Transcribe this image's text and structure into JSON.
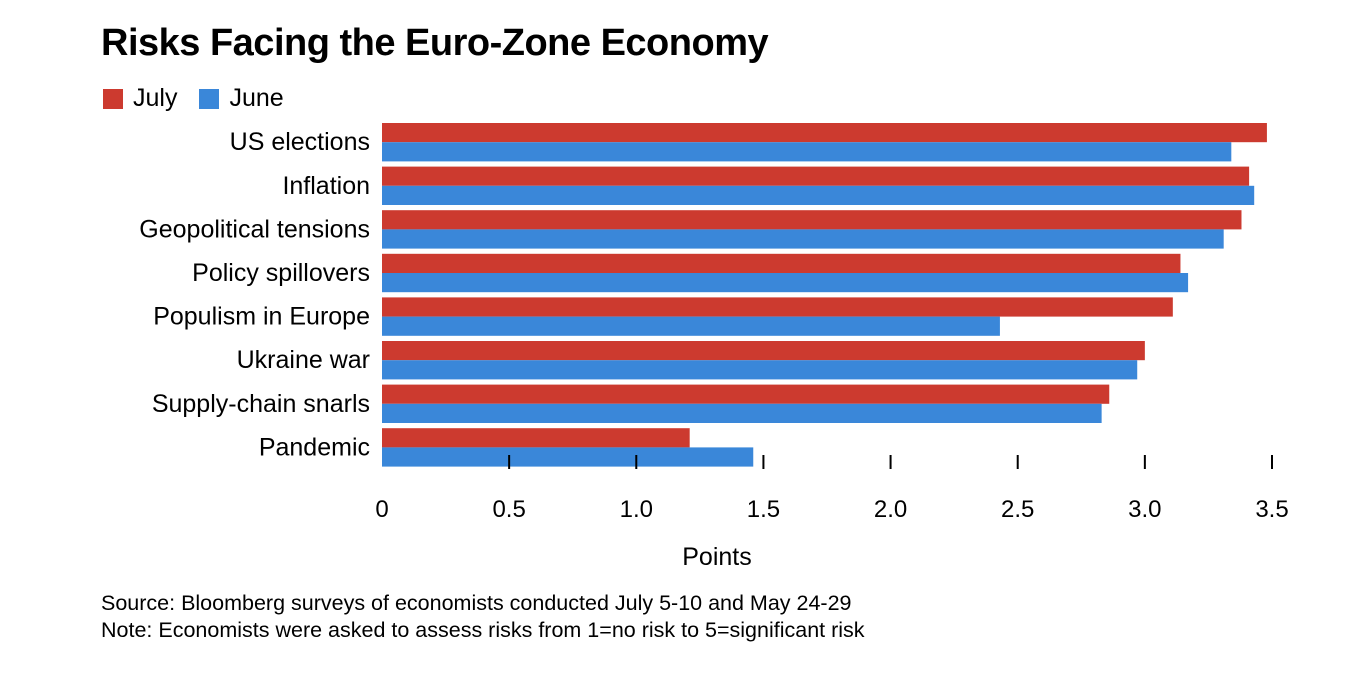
{
  "chart_data": {
    "type": "bar",
    "orientation": "horizontal",
    "title": "Risks Facing the Euro-Zone Economy",
    "xlabel": "Points",
    "ylabel": "",
    "xlim": [
      0,
      3.5
    ],
    "ticks": [
      0,
      0.5,
      1.0,
      1.5,
      2.0,
      2.5,
      3.0,
      3.5
    ],
    "tick_labels": [
      "0",
      "0.5",
      "1.0",
      "1.5",
      "2.0",
      "2.5",
      "3.0",
      "3.5"
    ],
    "categories": [
      "US elections",
      "Inflation",
      "Geopolitical tensions",
      "Policy spillovers",
      "Populism in Europe",
      "Ukraine war",
      "Supply-chain snarls",
      "Pandemic"
    ],
    "series": [
      {
        "name": "July",
        "color": "#cc3a2f",
        "values": [
          3.48,
          3.41,
          3.38,
          3.14,
          3.11,
          3.0,
          2.86,
          1.21
        ]
      },
      {
        "name": "June",
        "color": "#3a87d9",
        "values": [
          3.34,
          3.43,
          3.31,
          3.17,
          2.43,
          2.97,
          2.83,
          1.46
        ]
      }
    ],
    "legend_position": "top-left",
    "grid": false
  },
  "footnotes": {
    "source": "Source: Bloomberg surveys of economists conducted July 5-10 and May 24-29",
    "note": "Note: Economists were asked to assess risks from 1=no risk to 5=significant risk"
  }
}
